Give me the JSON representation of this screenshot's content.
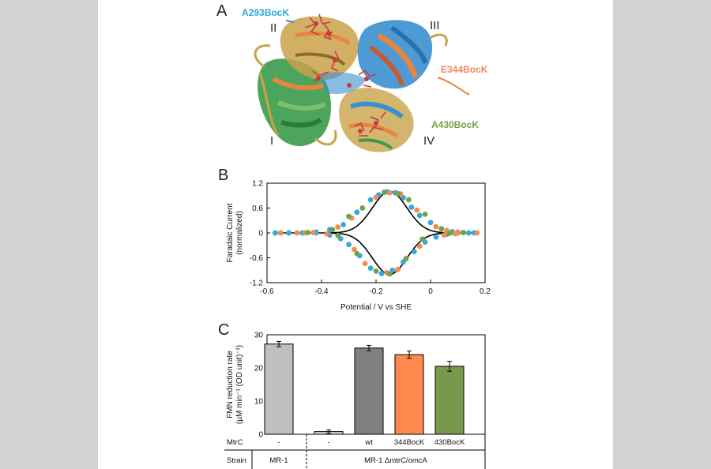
{
  "panels": {
    "a": "A",
    "b": "B",
    "c": "C"
  },
  "structure": {
    "domains": [
      "I",
      "II",
      "III",
      "IV"
    ],
    "mutations": [
      {
        "label": "A293BocK",
        "color": "#2aa7dc"
      },
      {
        "label": "E344BocK",
        "color": "#f08a57"
      },
      {
        "label": "A430BocK",
        "color": "#73a145"
      }
    ],
    "colors": {
      "green": "#3a9a4a",
      "blue": "#3a8fd0",
      "orange": "#e88540",
      "tan": "#c9a24a",
      "heme": "#c83c3c"
    }
  },
  "chart_data": [
    {
      "type": "scatter",
      "title": "",
      "xlabel": "Potential / V vs SHE",
      "ylabel": "Faradaic Current",
      "ylabel2": "(normalized)",
      "xlim": [
        -0.6,
        0.2
      ],
      "ylim": [
        -1.2,
        1.2
      ],
      "xticks": [
        -0.6,
        -0.4,
        -0.2,
        0,
        0.2
      ],
      "xtick_labels": [
        "-0.6",
        "-0.4",
        "-0.2",
        "0",
        "0.2"
      ],
      "yticks": [
        1.2,
        0.6,
        0,
        -0.6,
        -1.2
      ],
      "ytick_labels": [
        "1.2",
        "0.6",
        "0",
        "-0.6",
        "-1.2"
      ],
      "series": [
        {
          "color": "#33a9df",
          "x": [
            -0.57,
            -0.52,
            -0.47,
            -0.42,
            -0.37,
            -0.32,
            -0.27,
            -0.22,
            -0.19,
            -0.16,
            -0.13,
            -0.1,
            -0.07,
            -0.04,
            0.0,
            0.04,
            0.08,
            0.12,
            0.16,
            -0.57,
            -0.52,
            -0.47,
            -0.42,
            -0.37,
            -0.33,
            -0.3,
            -0.26,
            -0.22,
            -0.18,
            -0.14,
            -0.1,
            -0.06,
            -0.02,
            0.02,
            0.06,
            0.1,
            0.14
          ],
          "y": [
            0.0,
            0.0,
            0.0,
            0.02,
            0.08,
            0.2,
            0.5,
            0.8,
            0.92,
            0.99,
            0.97,
            0.85,
            0.62,
            0.42,
            0.25,
            0.1,
            0.03,
            0.01,
            0.0,
            0.0,
            0.0,
            0.0,
            0.0,
            -0.05,
            -0.14,
            -0.28,
            -0.55,
            -0.85,
            -0.98,
            -0.9,
            -0.7,
            -0.45,
            -0.22,
            -0.1,
            -0.03,
            0.0,
            0.0
          ]
        },
        {
          "color": "#f5894f",
          "x": [
            -0.55,
            -0.49,
            -0.43,
            -0.34,
            -0.29,
            -0.2,
            -0.15,
            -0.11,
            -0.05,
            0.02,
            0.06,
            0.1,
            0.17,
            -0.55,
            -0.46,
            -0.38,
            -0.28,
            -0.24,
            -0.16,
            -0.12,
            -0.04,
            0.05,
            0.09
          ],
          "y": [
            0.0,
            0.0,
            0.01,
            0.14,
            0.36,
            0.86,
            0.97,
            0.94,
            0.55,
            0.15,
            0.06,
            0.02,
            0.0,
            0.0,
            0.0,
            -0.02,
            -0.4,
            -0.74,
            -0.96,
            -0.88,
            -0.32,
            -0.05,
            -0.02
          ]
        },
        {
          "color": "#6da544",
          "x": [
            -0.45,
            -0.36,
            -0.3,
            -0.25,
            -0.17,
            -0.12,
            -0.08,
            -0.02,
            0.04,
            0.12,
            -0.34,
            -0.27,
            -0.2,
            -0.15,
            -0.09,
            -0.03,
            0.07
          ],
          "y": [
            0.01,
            0.08,
            0.4,
            0.6,
            0.98,
            0.95,
            0.8,
            0.45,
            0.1,
            0.01,
            -0.06,
            -0.5,
            -0.92,
            -0.99,
            -0.62,
            -0.15,
            -0.01
          ]
        }
      ],
      "fit_curve": {
        "color": "#000000",
        "peak_potential": -0.15
      }
    },
    {
      "type": "bar",
      "title": "",
      "ylabel": "FMN reduction rate",
      "ylabel2": "(µM min⁻¹ (OD unit)⁻¹)",
      "ylim": [
        0,
        30
      ],
      "yticks": [
        0,
        10,
        20,
        30
      ],
      "ytick_labels": [
        "0",
        "10",
        "20",
        "30"
      ],
      "categories": [
        "-",
        "-",
        "wt",
        "344BocK",
        "430BocK"
      ],
      "values": [
        27.2,
        0.8,
        26.0,
        24.0,
        20.5
      ],
      "errors": [
        0.8,
        0.5,
        0.8,
        1.1,
        1.5
      ],
      "colors": [
        "#bfbfbf",
        "#d9d9d9",
        "#808080",
        "#ff8a4f",
        "#77994a"
      ],
      "row1_label": "MtrC",
      "row2_label": "Strain",
      "strains": [
        "MR-1",
        "MR-1 ΔmtrC/omcA"
      ]
    }
  ]
}
